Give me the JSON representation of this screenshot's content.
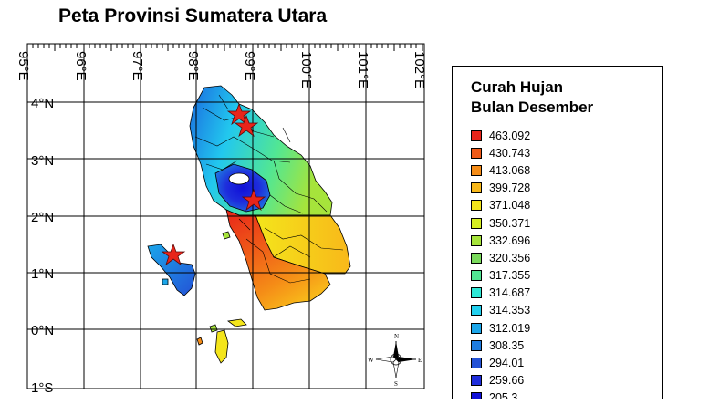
{
  "title": "Peta Provinsi Sumatera Utara",
  "legend": {
    "title_line1": "Curah Hujan",
    "title_line2": "Bulan Desember",
    "items": [
      {
        "label": "463.092",
        "color": "#e8251a"
      },
      {
        "label": "430.743",
        "color": "#ef5a18"
      },
      {
        "label": "413.068",
        "color": "#f58c17"
      },
      {
        "label": "399.728",
        "color": "#f8b81a"
      },
      {
        "label": "371.048",
        "color": "#f4e51b"
      },
      {
        "label": "350.371",
        "color": "#d7ef22"
      },
      {
        "label": "332.696",
        "color": "#a6e43b"
      },
      {
        "label": "320.356",
        "color": "#7ada5c"
      },
      {
        "label": "317.355",
        "color": "#52e693"
      },
      {
        "label": "314.687",
        "color": "#2de8d6"
      },
      {
        "label": "314.353",
        "color": "#22d0ef"
      },
      {
        "label": "312.019",
        "color": "#1ba6ea"
      },
      {
        "label": "308.35",
        "color": "#1f7ce0"
      },
      {
        "label": "294.01",
        "color": "#2452d6"
      },
      {
        "label": "259.66",
        "color": "#1e2ddc"
      },
      {
        "label": "205.3",
        "color": "#1010d8"
      }
    ]
  },
  "axes": {
    "lon_labels": [
      "95°E",
      "96°E",
      "97°E",
      "98°E",
      "99°E",
      "100°E",
      "101°E",
      "102°E"
    ],
    "lat_labels": [
      "4°N",
      "3°N",
      "2°N",
      "1°N",
      "0°N",
      "1°S"
    ]
  },
  "compass": {
    "n": "N",
    "s": "S",
    "e": "E",
    "w": "W"
  }
}
